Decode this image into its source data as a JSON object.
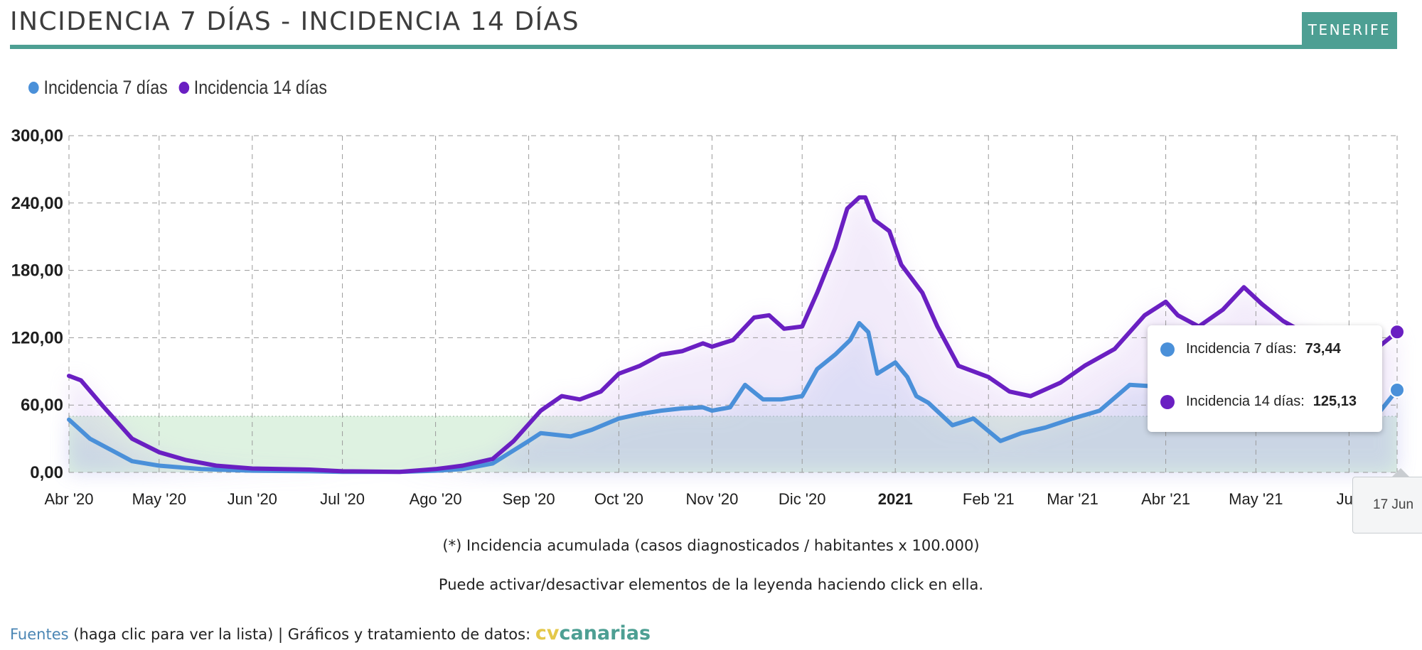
{
  "header": {
    "title": "INCIDENCIA 7 DÍAS - INCIDENCIA 14 DÍAS",
    "region": "TENERIFE"
  },
  "legend": [
    {
      "label": "Incidencia 7 días",
      "color": "#4a90d9"
    },
    {
      "label": "Incidencia 14 días",
      "color": "#6a1fc2"
    }
  ],
  "tooltip": {
    "row1_label": "Incidencia 7 días:",
    "row1_value": "73,44",
    "row2_label": "Incidencia 14 días:",
    "row2_value": "125,13",
    "date": "17 Jun"
  },
  "notes": {
    "footnote": "(*) Incidencia acumulada (casos diagnosticados / habitantes x 100.000)",
    "hint": "Puede activar/desactivar elementos de la leyenda haciendo click en ella."
  },
  "footer": {
    "sources_link": "Fuentes",
    "sources_hint": "(haga clic para ver la lista)",
    "separator": "|",
    "credit_text": "Gráficos y tratamiento de datos:",
    "brand_cv": "cv",
    "brand_canarias": "canarias"
  },
  "chart_data": {
    "type": "line",
    "title": "INCIDENCIA 7 DÍAS - INCIDENCIA 14 DÍAS",
    "xlabel": "",
    "ylabel": "",
    "ylim": [
      0,
      300
    ],
    "yticks": [
      0,
      60,
      120,
      180,
      240,
      300
    ],
    "ytick_labels": [
      "0,00",
      "60,00",
      "120,00",
      "180,00",
      "240,00",
      "300,00"
    ],
    "xlim": [
      "2020-04-01",
      "2021-06-17"
    ],
    "x_tick_dates": [
      "2020-04-01",
      "2020-05-01",
      "2020-06-01",
      "2020-07-01",
      "2020-08-01",
      "2020-09-01",
      "2020-10-01",
      "2020-11-01",
      "2020-12-01",
      "2021-01-01",
      "2021-02-01",
      "2021-03-01",
      "2021-04-01",
      "2021-05-01",
      "2021-06-01"
    ],
    "x_tick_labels": [
      "Abr '20",
      "May '20",
      "Jun '20",
      "Jul '20",
      "Ago '20",
      "Sep '20",
      "Oct '20",
      "Nov '20",
      "Dic '20",
      "2021",
      "Feb '21",
      "Mar '21",
      "Abr '21",
      "May '21",
      "Jun"
    ],
    "grid": true,
    "legend_position": "top-left",
    "threshold_band": {
      "from": 0,
      "to": 50,
      "color": "#d8f0dc"
    },
    "series": [
      {
        "name": "Incidencia 7 días",
        "color": "#4a90d9",
        "points": [
          [
            "2020-04-01",
            47
          ],
          [
            "2020-04-08",
            30
          ],
          [
            "2020-04-15",
            20
          ],
          [
            "2020-04-22",
            10
          ],
          [
            "2020-05-01",
            6
          ],
          [
            "2020-05-15",
            3
          ],
          [
            "2020-06-01",
            1.5
          ],
          [
            "2020-06-20",
            1
          ],
          [
            "2020-07-01",
            0.5
          ],
          [
            "2020-07-20",
            0.5
          ],
          [
            "2020-08-01",
            1.5
          ],
          [
            "2020-08-10",
            3
          ],
          [
            "2020-08-20",
            8
          ],
          [
            "2020-09-01",
            28
          ],
          [
            "2020-09-05",
            35
          ],
          [
            "2020-09-15",
            32
          ],
          [
            "2020-09-22",
            38
          ],
          [
            "2020-10-01",
            48
          ],
          [
            "2020-10-08",
            52
          ],
          [
            "2020-10-15",
            55
          ],
          [
            "2020-10-22",
            57
          ],
          [
            "2020-10-29",
            58
          ],
          [
            "2020-11-01",
            55
          ],
          [
            "2020-11-07",
            58
          ],
          [
            "2020-11-12",
            78
          ],
          [
            "2020-11-18",
            65
          ],
          [
            "2020-11-24",
            65
          ],
          [
            "2020-12-01",
            68
          ],
          [
            "2020-12-06",
            92
          ],
          [
            "2020-12-12",
            105
          ],
          [
            "2020-12-17",
            118
          ],
          [
            "2020-12-20",
            133
          ],
          [
            "2020-12-23",
            125
          ],
          [
            "2020-12-26",
            88
          ],
          [
            "2021-01-01",
            98
          ],
          [
            "2021-01-05",
            85
          ],
          [
            "2021-01-08",
            68
          ],
          [
            "2021-01-12",
            62
          ],
          [
            "2021-01-20",
            42
          ],
          [
            "2021-01-27",
            48
          ],
          [
            "2021-02-05",
            28
          ],
          [
            "2021-02-12",
            35
          ],
          [
            "2021-02-20",
            40
          ],
          [
            "2021-03-01",
            48
          ],
          [
            "2021-03-10",
            55
          ],
          [
            "2021-03-20",
            78
          ],
          [
            "2021-04-01",
            76
          ],
          [
            "2021-04-10",
            77
          ],
          [
            "2021-04-20",
            82
          ],
          [
            "2021-05-01",
            80
          ],
          [
            "2021-05-10",
            72
          ],
          [
            "2021-05-20",
            60
          ],
          [
            "2021-06-01",
            55
          ],
          [
            "2021-06-10",
            50
          ],
          [
            "2021-06-17",
            73.44
          ]
        ]
      },
      {
        "name": "Incidencia 14 días",
        "color": "#6a1fc2",
        "points": [
          [
            "2020-04-01",
            86
          ],
          [
            "2020-04-05",
            82
          ],
          [
            "2020-04-12",
            60
          ],
          [
            "2020-04-22",
            30
          ],
          [
            "2020-05-01",
            18
          ],
          [
            "2020-05-10",
            11
          ],
          [
            "2020-05-20",
            6
          ],
          [
            "2020-06-01",
            3.5
          ],
          [
            "2020-06-20",
            2.5
          ],
          [
            "2020-07-01",
            1
          ],
          [
            "2020-07-20",
            0.5
          ],
          [
            "2020-08-01",
            3
          ],
          [
            "2020-08-10",
            6
          ],
          [
            "2020-08-20",
            12
          ],
          [
            "2020-08-27",
            28
          ],
          [
            "2020-09-05",
            55
          ],
          [
            "2020-09-12",
            68
          ],
          [
            "2020-09-18",
            65
          ],
          [
            "2020-09-25",
            72
          ],
          [
            "2020-10-01",
            88
          ],
          [
            "2020-10-08",
            95
          ],
          [
            "2020-10-15",
            105
          ],
          [
            "2020-10-22",
            108
          ],
          [
            "2020-10-29",
            115
          ],
          [
            "2020-11-01",
            112
          ],
          [
            "2020-11-08",
            118
          ],
          [
            "2020-11-15",
            138
          ],
          [
            "2020-11-20",
            140
          ],
          [
            "2020-11-25",
            128
          ],
          [
            "2020-12-01",
            130
          ],
          [
            "2020-12-06",
            160
          ],
          [
            "2020-12-12",
            200
          ],
          [
            "2020-12-16",
            235
          ],
          [
            "2020-12-20",
            245
          ],
          [
            "2020-12-22",
            245
          ],
          [
            "2020-12-25",
            225
          ],
          [
            "2020-12-30",
            215
          ],
          [
            "2021-01-03",
            185
          ],
          [
            "2021-01-10",
            160
          ],
          [
            "2021-01-15",
            130
          ],
          [
            "2021-01-22",
            95
          ],
          [
            "2021-02-01",
            85
          ],
          [
            "2021-02-08",
            72
          ],
          [
            "2021-02-15",
            68
          ],
          [
            "2021-02-25",
            80
          ],
          [
            "2021-03-05",
            95
          ],
          [
            "2021-03-15",
            110
          ],
          [
            "2021-03-25",
            140
          ],
          [
            "2021-04-01",
            152
          ],
          [
            "2021-04-05",
            140
          ],
          [
            "2021-04-12",
            130
          ],
          [
            "2021-04-20",
            145
          ],
          [
            "2021-04-27",
            165
          ],
          [
            "2021-05-03",
            150
          ],
          [
            "2021-05-10",
            135
          ],
          [
            "2021-05-20",
            120
          ],
          [
            "2021-06-01",
            112
          ],
          [
            "2021-06-10",
            110
          ],
          [
            "2021-06-17",
            125.13
          ]
        ]
      }
    ]
  }
}
